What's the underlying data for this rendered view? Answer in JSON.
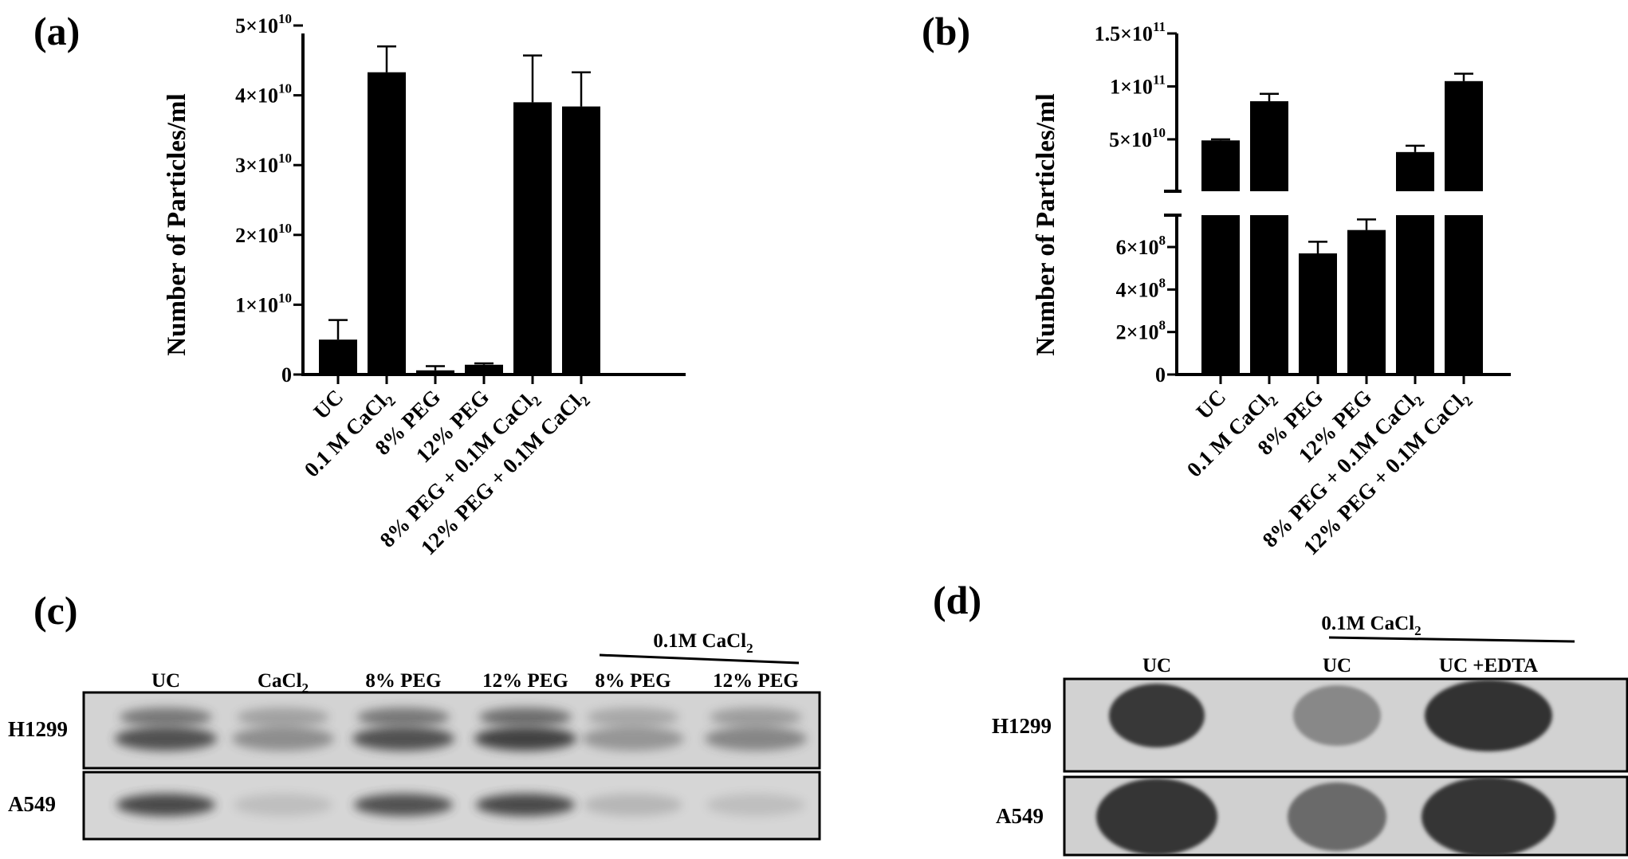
{
  "panels": {
    "a": "(a)",
    "b": "(b)",
    "c": "(c)",
    "d": "(d)"
  },
  "chart_data": [
    {
      "panel": "a",
      "type": "bar",
      "ylabel": "Number of Particles/ml",
      "xlabel": "",
      "ylim": [
        0,
        50000000000
      ],
      "yticks": [
        {
          "value": 0,
          "base": "0",
          "sup": ""
        },
        {
          "value": 10000000000,
          "base": "1×10",
          "sup": "10"
        },
        {
          "value": 20000000000,
          "base": "2×10",
          "sup": "10"
        },
        {
          "value": 30000000000,
          "base": "3×10",
          "sup": "10"
        },
        {
          "value": 40000000000,
          "base": "4×10",
          "sup": "10"
        },
        {
          "value": 50000000000,
          "base": "5×10",
          "sup": "10"
        }
      ],
      "categories": [
        {
          "pre": "UC",
          "sub": "",
          "post": ""
        },
        {
          "pre": "0.1 M CaCl",
          "sub": "2",
          "post": ""
        },
        {
          "pre": "8% PEG",
          "sub": "",
          "post": ""
        },
        {
          "pre": "12% PEG",
          "sub": "",
          "post": ""
        },
        {
          "pre": "8% PEG + 0.1M CaCl",
          "sub": "2",
          "post": ""
        },
        {
          "pre": "12% PEG + 0.1M CaCl",
          "sub": "2",
          "post": ""
        }
      ],
      "values": [
        5000000000,
        43300000000,
        600000000,
        1400000000,
        39000000000,
        38400000000
      ],
      "errors": [
        2800000000,
        3700000000,
        600000000,
        200000000,
        6700000000,
        4900000000
      ]
    },
    {
      "panel": "b",
      "type": "bar",
      "axis_break": true,
      "ylabel": "Number of Particles/ml",
      "xlabel": "",
      "ylim_lower": [
        0,
        750000000
      ],
      "ylim_upper": [
        1000000000,
        150000000000
      ],
      "yticks": [
        {
          "value": 0,
          "base": "0",
          "sup": ""
        },
        {
          "value": 200000000,
          "base": "2×10",
          "sup": "8"
        },
        {
          "value": 400000000,
          "base": "4×10",
          "sup": "8"
        },
        {
          "value": 600000000,
          "base": "6×10",
          "sup": "8"
        },
        {
          "value": 50000000000,
          "base": "5×10",
          "sup": "10"
        },
        {
          "value": 100000000000,
          "base": "1×10",
          "sup": "11"
        },
        {
          "value": 150000000000,
          "base": "1.5×10",
          "sup": "11"
        }
      ],
      "categories": [
        {
          "pre": "UC",
          "sub": "",
          "post": ""
        },
        {
          "pre": "0.1 M CaCl",
          "sub": "2",
          "post": ""
        },
        {
          "pre": "8% PEG",
          "sub": "",
          "post": ""
        },
        {
          "pre": "12% PEG",
          "sub": "",
          "post": ""
        },
        {
          "pre": "8% PEG + 0.1M CaCl",
          "sub": "2",
          "post": ""
        },
        {
          "pre": "12% PEG + 0.1M CaCl",
          "sub": "2",
          "post": ""
        }
      ],
      "values": [
        49000000000,
        86000000000,
        570000000,
        680000000,
        38000000000,
        105000000000
      ],
      "errors": [
        1000000000,
        7000000000,
        55000000,
        50000000,
        6000000000,
        7000000000
      ]
    }
  ],
  "blot_c": {
    "bracket_label": {
      "pre": "0.1M CaCl",
      "sub": "2"
    },
    "lanes": [
      {
        "pre": "UC",
        "sub": ""
      },
      {
        "pre": "CaCl",
        "sub": "2"
      },
      {
        "pre": "8% PEG",
        "sub": ""
      },
      {
        "pre": "12% PEG",
        "sub": ""
      },
      {
        "pre": "8% PEG",
        "sub": ""
      },
      {
        "pre": "12% PEG",
        "sub": ""
      }
    ],
    "rows": [
      "H1299",
      "A549"
    ],
    "band_intensity": {
      "H1299": [
        0.85,
        0.45,
        0.85,
        0.95,
        0.4,
        0.5
      ],
      "A549": [
        0.9,
        0.15,
        0.85,
        0.9,
        0.2,
        0.15
      ]
    }
  },
  "blot_d": {
    "bracket_label": {
      "pre": "0.1M CaCl",
      "sub": "2"
    },
    "lanes": [
      "UC",
      "UC",
      "UC +EDTA"
    ],
    "rows": [
      "H1299",
      "A549"
    ],
    "dot_intensity": {
      "H1299": [
        0.9,
        0.4,
        0.95
      ],
      "A549": [
        0.95,
        0.6,
        0.95
      ]
    }
  },
  "colors": {
    "bar": "#000000",
    "background": "#ffffff",
    "blot_bg": "#d4d4d4",
    "band": "#3a3a3a"
  }
}
